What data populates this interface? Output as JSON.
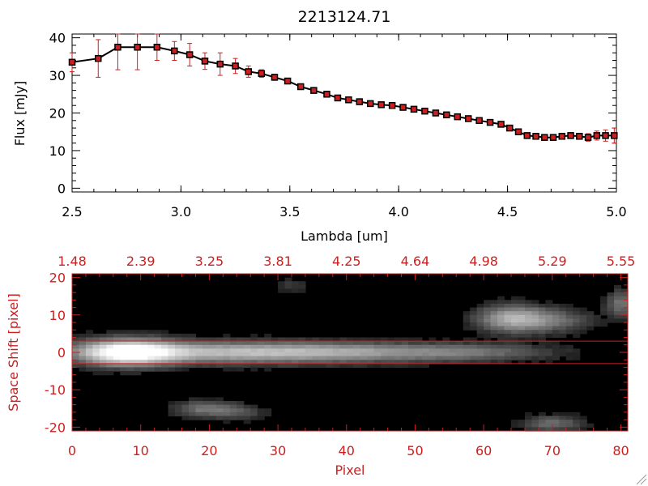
{
  "chart_data": [
    {
      "type": "line",
      "title": "2213124.71",
      "xlabel": "Lambda [um]",
      "ylabel": "Flux [mJy]",
      "xlim": [
        2.5,
        5.0
      ],
      "ylim": [
        -1,
        41
      ],
      "x_ticks": [
        "2.5",
        "3.0",
        "3.5",
        "4.0",
        "4.5",
        "5.0"
      ],
      "y_ticks": [
        "0",
        "10",
        "20",
        "30",
        "40"
      ],
      "line_color": "#000000",
      "marker_color": "#cc2020",
      "errorbar_color": "#cc2020",
      "series": [
        {
          "x": [
            2.5,
            2.62,
            2.71,
            2.8,
            2.89,
            2.97,
            3.04,
            3.11,
            3.18,
            3.25,
            3.31,
            3.37,
            3.43,
            3.49,
            3.55,
            3.61,
            3.67,
            3.72,
            3.77,
            3.82,
            3.87,
            3.92,
            3.97,
            4.02,
            4.07,
            4.12,
            4.17,
            4.22,
            4.27,
            4.32,
            4.37,
            4.42,
            4.47,
            4.51,
            4.55,
            4.59,
            4.63,
            4.67,
            4.71,
            4.75,
            4.79,
            4.83,
            4.87,
            4.91,
            4.95,
            4.99
          ],
          "y": [
            33.5,
            34.5,
            37.5,
            37.5,
            37.5,
            36.5,
            35.5,
            33.8,
            33.0,
            32.5,
            31.0,
            30.5,
            29.5,
            28.5,
            27.0,
            26.0,
            25.0,
            24.0,
            23.5,
            23.0,
            22.5,
            22.2,
            22.0,
            21.5,
            21.0,
            20.5,
            20.0,
            19.5,
            19.0,
            18.5,
            18.0,
            17.5,
            17.0,
            16.0,
            15.0,
            14.0,
            13.8,
            13.5,
            13.5,
            13.8,
            14.0,
            13.8,
            13.5,
            14.0,
            14.0,
            14.0
          ],
          "yerr": [
            2.5,
            5.0,
            6.0,
            6.0,
            3.5,
            2.5,
            3.0,
            2.2,
            3.0,
            2.0,
            1.5,
            1.0,
            0.8,
            0.7,
            0.7,
            0.7,
            0.6,
            0.6,
            0.6,
            0.6,
            0.6,
            0.6,
            0.6,
            0.6,
            0.6,
            0.6,
            0.6,
            0.6,
            0.6,
            0.6,
            0.6,
            0.6,
            0.6,
            0.6,
            0.6,
            0.6,
            0.6,
            0.6,
            0.6,
            0.8,
            0.8,
            0.8,
            1.0,
            1.2,
            1.5,
            2.0
          ]
        }
      ]
    },
    {
      "type": "heatmap",
      "xlabel": "Pixel",
      "ylabel": "Space Shift [pixel]",
      "xlim": [
        0,
        81
      ],
      "ylim": [
        -21,
        21
      ],
      "x_ticks": [
        "0",
        "10",
        "20",
        "30",
        "40",
        "50",
        "60",
        "70",
        "80"
      ],
      "y_ticks": [
        "-20",
        "-10",
        "0",
        "10",
        "20"
      ],
      "top_ticks": [
        "1.48",
        "2.39",
        "3.25",
        "3.81",
        "4.25",
        "4.64",
        "4.98",
        "5.29",
        "5.55"
      ],
      "extraction_lines_y": [
        3,
        -3
      ],
      "frame_color": "#cc2020",
      "colormap": "grayscale",
      "sources": [
        {
          "x": 8,
          "y": 0,
          "sigma_x": 5,
          "sigma_y": 2.4,
          "peak": 1.0
        },
        {
          "x": 22,
          "y": 0,
          "sigma_x": 12,
          "sigma_y": 2.0,
          "peak": 0.55
        },
        {
          "x": 42,
          "y": 0,
          "sigma_x": 12,
          "sigma_y": 1.8,
          "peak": 0.42
        },
        {
          "x": 60,
          "y": 0,
          "sigma_x": 8,
          "sigma_y": 1.6,
          "peak": 0.22
        },
        {
          "x": 64,
          "y": 9,
          "sigma_x": 3.5,
          "sigma_y": 2.5,
          "peak": 0.55
        },
        {
          "x": 70,
          "y": 8.5,
          "sigma_x": 4,
          "sigma_y": 2.2,
          "peak": 0.3
        },
        {
          "x": 80,
          "y": 13,
          "sigma_x": 1.5,
          "sigma_y": 2.5,
          "peak": 0.35
        },
        {
          "x": 19,
          "y": -15,
          "sigma_x": 3,
          "sigma_y": 1.5,
          "peak": 0.32
        },
        {
          "x": 24,
          "y": -16,
          "sigma_x": 3,
          "sigma_y": 1.5,
          "peak": 0.22
        },
        {
          "x": 70,
          "y": -19,
          "sigma_x": 3,
          "sigma_y": 1.5,
          "peak": 0.32
        },
        {
          "x": 32,
          "y": 18,
          "sigma_x": 2,
          "sigma_y": 1.5,
          "peak": 0.12
        }
      ]
    }
  ]
}
